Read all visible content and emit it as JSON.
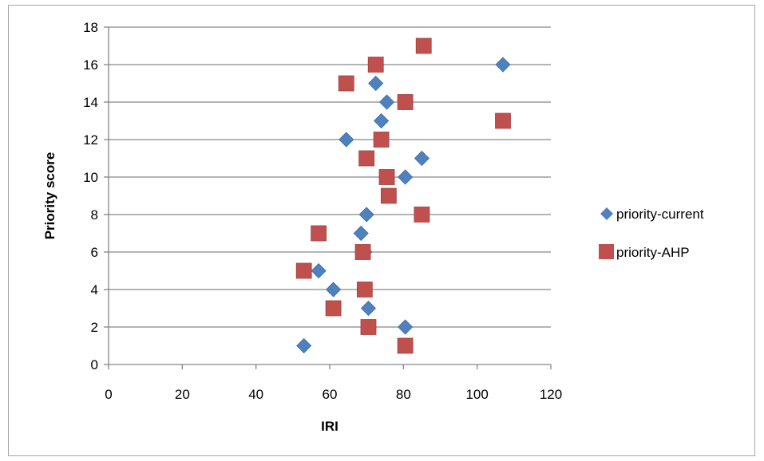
{
  "chart_data": {
    "type": "scatter",
    "xlabel": "IRI",
    "ylabel": "Priority score",
    "xlim": [
      0,
      120
    ],
    "ylim": [
      0,
      18
    ],
    "x_ticks": [
      0,
      20,
      40,
      60,
      80,
      100,
      120
    ],
    "y_ticks": [
      0,
      2,
      4,
      6,
      8,
      10,
      12,
      14,
      16,
      18
    ],
    "grid": "horizontal",
    "legend_position": "right",
    "series": [
      {
        "name": "priority-current",
        "marker": "diamond",
        "color": "#4f81bd",
        "points": [
          {
            "x": 53,
            "y": 1
          },
          {
            "x": 80.5,
            "y": 2
          },
          {
            "x": 70.5,
            "y": 3
          },
          {
            "x": 61,
            "y": 4
          },
          {
            "x": 57,
            "y": 5
          },
          {
            "x": 69.5,
            "y": 6
          },
          {
            "x": 68.5,
            "y": 7
          },
          {
            "x": 70,
            "y": 8
          },
          {
            "x": 80.5,
            "y": 10
          },
          {
            "x": 85,
            "y": 11
          },
          {
            "x": 64.5,
            "y": 12
          },
          {
            "x": 74,
            "y": 13
          },
          {
            "x": 75.5,
            "y": 14
          },
          {
            "x": 72.5,
            "y": 15
          },
          {
            "x": 107,
            "y": 16
          }
        ]
      },
      {
        "name": "priority-AHP",
        "marker": "square",
        "color": "#c0504d",
        "points": [
          {
            "x": 80.5,
            "y": 1
          },
          {
            "x": 70.5,
            "y": 2
          },
          {
            "x": 61,
            "y": 3
          },
          {
            "x": 69.5,
            "y": 4
          },
          {
            "x": 53,
            "y": 5
          },
          {
            "x": 69,
            "y": 6
          },
          {
            "x": 57,
            "y": 7
          },
          {
            "x": 85,
            "y": 8
          },
          {
            "x": 76,
            "y": 9
          },
          {
            "x": 75.5,
            "y": 10
          },
          {
            "x": 70,
            "y": 11
          },
          {
            "x": 74,
            "y": 12
          },
          {
            "x": 107,
            "y": 13
          },
          {
            "x": 80.5,
            "y": 14
          },
          {
            "x": 64.5,
            "y": 15
          },
          {
            "x": 72.5,
            "y": 16
          },
          {
            "x": 85.5,
            "y": 17
          }
        ]
      }
    ]
  }
}
